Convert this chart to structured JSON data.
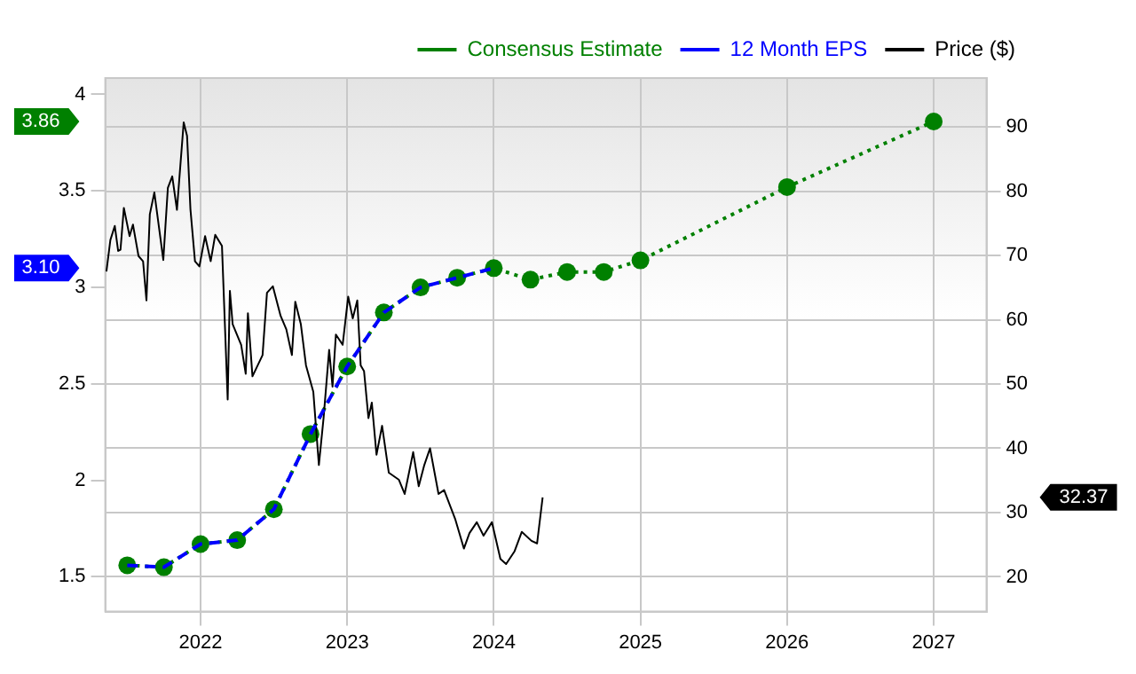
{
  "chart_data": {
    "type": "line",
    "xlim": [
      2021.35,
      2027.36
    ],
    "xticks": [
      2022,
      2023,
      2024,
      2025,
      2026,
      2027
    ],
    "ylim": [
      1.32,
      4.085
    ],
    "yticks": [
      1.5,
      2,
      2.5,
      3,
      3.5,
      4
    ],
    "y2lim": [
      14.6,
      97.6
    ],
    "y2ticks": [
      20,
      30,
      40,
      50,
      60,
      70,
      80,
      90
    ],
    "grid": true,
    "legend": "top right",
    "annotations": [
      "3.86",
      "3.10",
      "32.37"
    ],
    "series": [
      {
        "name": "Consensus Estimate",
        "color": "#008000",
        "line_style": "dotted",
        "marker": "circle",
        "x": [
          2021.5,
          2021.75,
          2022,
          2022.25,
          2022.5,
          2022.75,
          2023,
          2023.25,
          2023.5,
          2023.75,
          2024,
          2024.25,
          2024.5,
          2024.75,
          2025,
          2026,
          2027
        ],
        "values": [
          1.56,
          1.55,
          1.67,
          1.69,
          1.85,
          2.24,
          2.59,
          2.87,
          3.0,
          3.05,
          3.1,
          3.04,
          3.08,
          3.08,
          3.14,
          3.52,
          3.86
        ]
      },
      {
        "name": "12 Month EPS",
        "color": "#0000ff",
        "line_style": "dashed",
        "marker": "none",
        "x": [
          2021.5,
          2021.75,
          2022,
          2022.25,
          2022.5,
          2022.75,
          2023,
          2023.25,
          2023.5,
          2023.75,
          2024
        ],
        "values": [
          1.56,
          1.55,
          1.67,
          1.69,
          1.85,
          2.24,
          2.59,
          2.87,
          3.0,
          3.05,
          3.1
        ]
      },
      {
        "name": "Price ($)",
        "color": "#000000",
        "axis": "y2",
        "line_style": "solid",
        "marker": "none",
        "x": [
          2021.358,
          2021.385,
          2021.415,
          2021.438,
          2021.454,
          2021.477,
          2021.516,
          2021.539,
          2021.577,
          2021.608,
          2021.631,
          2021.654,
          2021.685,
          2021.746,
          2021.777,
          2021.807,
          2021.839,
          2021.885,
          2021.908,
          2021.931,
          2021.962,
          2021.992,
          2022.031,
          2022.069,
          2022.1,
          2022.146,
          2022.185,
          2022.2,
          2022.219,
          2022.277,
          2022.308,
          2022.323,
          2022.354,
          2022.423,
          2022.453,
          2022.493,
          2022.546,
          2022.585,
          2022.623,
          2022.646,
          2022.684,
          2022.719,
          2022.769,
          2022.807,
          2022.839,
          2022.877,
          2022.9,
          2022.923,
          2022.969,
          2023.007,
          2023.038,
          2023.069,
          2023.092,
          2023.115,
          2023.145,
          2023.168,
          2023.2,
          2023.238,
          2023.284,
          2023.353,
          2023.392,
          2023.45,
          2023.488,
          2023.526,
          2023.565,
          2023.623,
          2023.661,
          2023.738,
          2023.796,
          2023.834,
          2023.884,
          2023.93,
          2023.987,
          2024.045,
          2024.084,
          2024.142,
          2024.191,
          2024.257,
          2024.295,
          2024.333
        ],
        "values": [
          67.5,
          72.4,
          74.6,
          70.7,
          70.9,
          77.4,
          73.0,
          74.8,
          69.9,
          69.1,
          63.0,
          76.4,
          79.8,
          69.3,
          80.5,
          82.3,
          77.1,
          90.7,
          88.6,
          77.2,
          69.1,
          68.3,
          73.0,
          69.1,
          73.2,
          71.5,
          47.6,
          64.5,
          59.3,
          56.1,
          51.6,
          61.0,
          51.2,
          54.5,
          64.2,
          65.2,
          60.6,
          58.5,
          54.5,
          62.8,
          59.3,
          52.9,
          48.8,
          37.4,
          44.7,
          55.3,
          49.6,
          57.7,
          56.1,
          63.6,
          60.2,
          63.0,
          52.9,
          52.0,
          44.7,
          47.1,
          39.0,
          43.5,
          36.2,
          35.1,
          32.9,
          39.4,
          34.1,
          37.4,
          40.0,
          32.9,
          33.5,
          28.9,
          24.4,
          26.8,
          28.5,
          26.4,
          28.5,
          22.8,
          22.0,
          24.0,
          27.0,
          25.6,
          25.2,
          32.37
        ]
      }
    ]
  }
}
